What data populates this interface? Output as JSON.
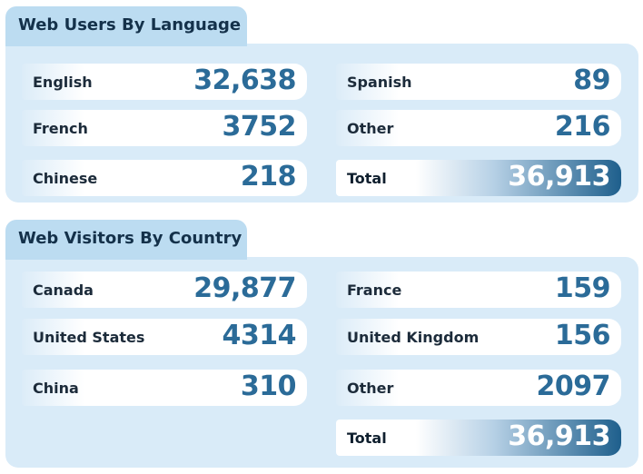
{
  "language": {
    "title": "Web Users By Language",
    "left": [
      {
        "label": "English",
        "value": "32,638"
      },
      {
        "label": "French",
        "value": "3752"
      },
      {
        "label": "Chinese",
        "value": "218"
      }
    ],
    "right": [
      {
        "label": "Spanish",
        "value": "89"
      },
      {
        "label": "Other",
        "value": "216"
      }
    ],
    "total": {
      "label": "Total",
      "value": "36,913"
    }
  },
  "country": {
    "title": "Web Visitors By Country",
    "left": [
      {
        "label": "Canada",
        "value": "29,877"
      },
      {
        "label": "United States",
        "value": "4314"
      },
      {
        "label": "China",
        "value": "310"
      }
    ],
    "right": [
      {
        "label": "France",
        "value": "159"
      },
      {
        "label": "United Kingdom",
        "value": "156"
      },
      {
        "label": "Other",
        "value": "2097"
      }
    ],
    "total": {
      "label": "Total",
      "value": "36,913"
    }
  }
}
